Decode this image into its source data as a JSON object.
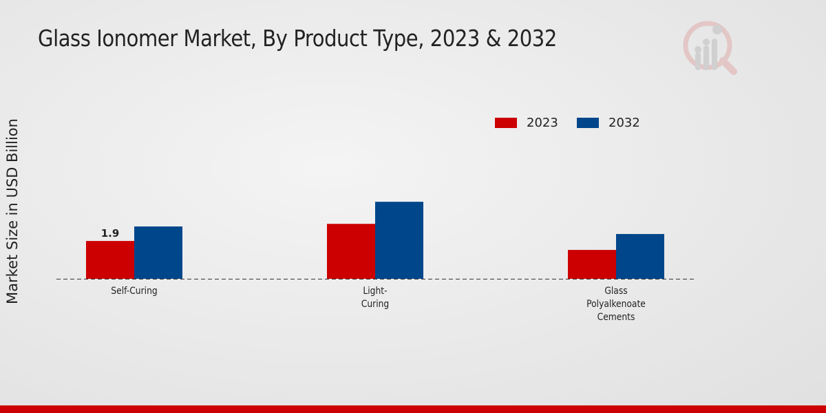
{
  "chart_data": {
    "type": "bar",
    "title": "Glass Ionomer Market, By Product Type, 2023 & 2032",
    "xlabel": "",
    "ylabel": "Market Size in USD Billion",
    "categories": [
      [
        "Self-Curing"
      ],
      [
        "Light-",
        "Curing"
      ],
      [
        "Glass",
        "Polyalkenoate",
        "Cements"
      ]
    ],
    "series": [
      {
        "name": "2023",
        "color": "#cc0000",
        "values": [
          1.9,
          2.76,
          1.45
        ],
        "labels": [
          "1.9",
          null,
          null
        ]
      },
      {
        "name": "2032",
        "color": "#00468b",
        "values": [
          2.63,
          3.87,
          2.25
        ],
        "labels": [
          null,
          null,
          null
        ]
      }
    ],
    "ylim": [
      0,
      6.5
    ],
    "grid": false,
    "legend_position": "top-right"
  }
}
